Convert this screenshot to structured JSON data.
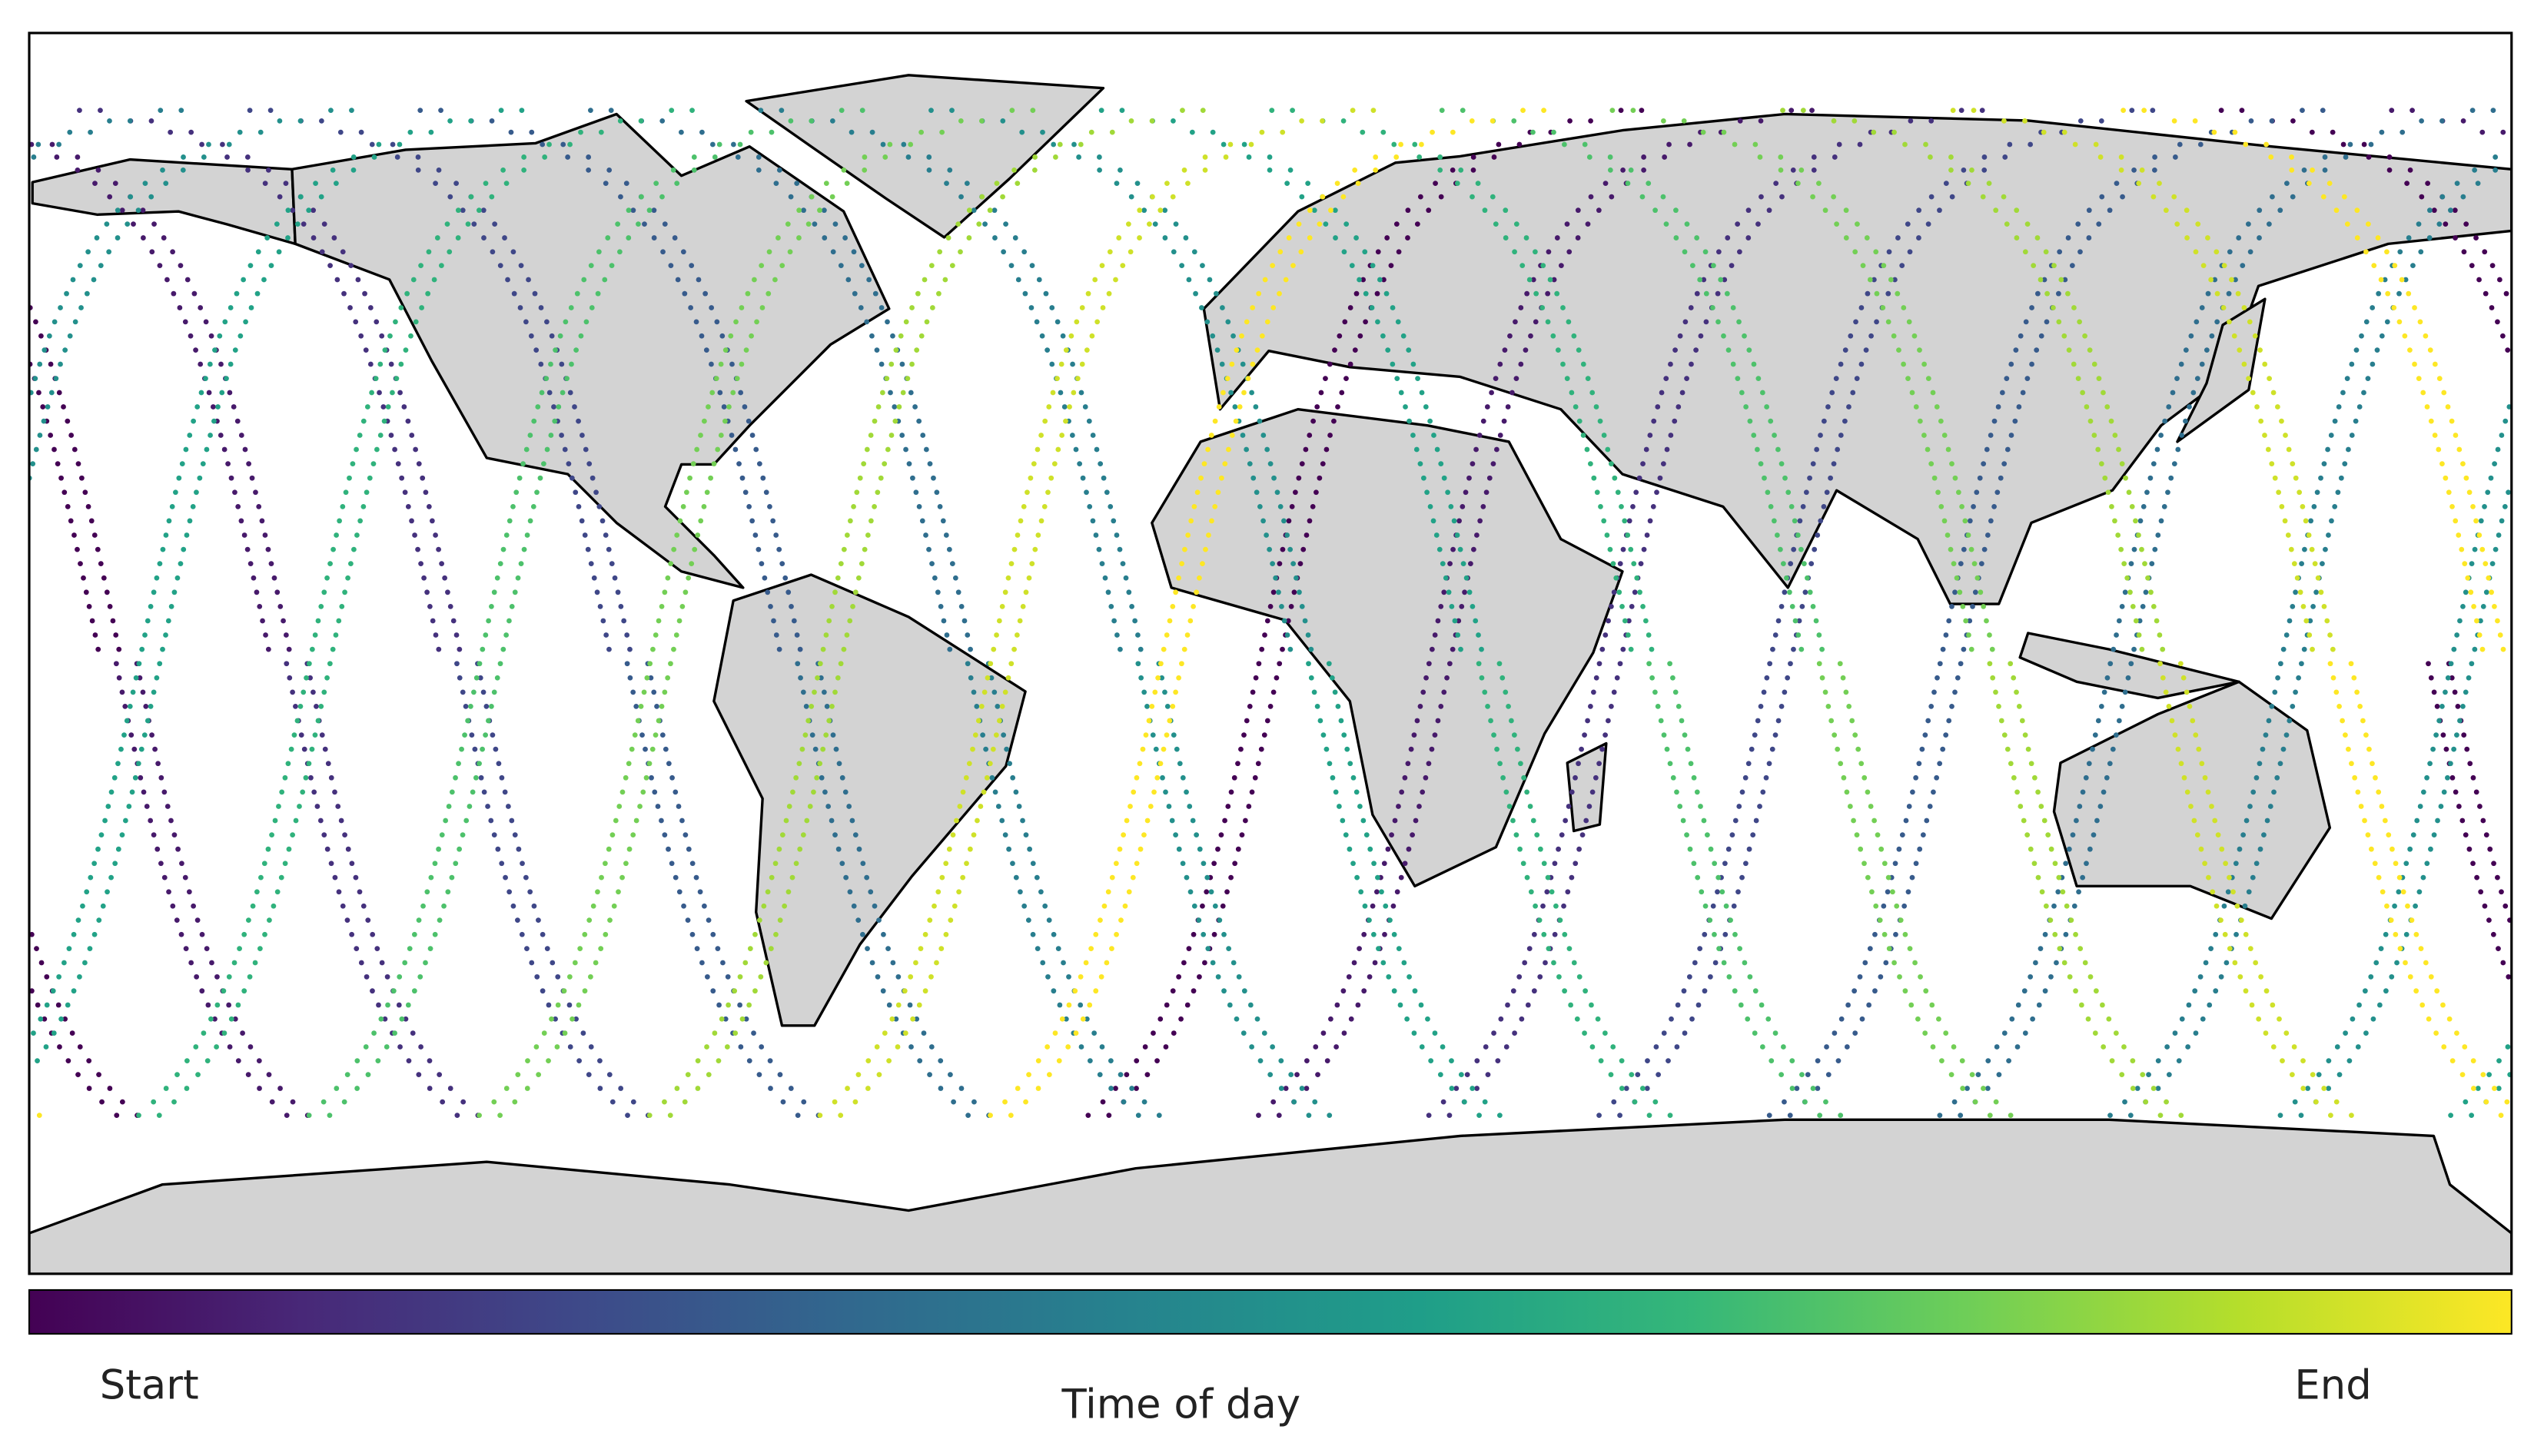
{
  "colorbar": {
    "label": "Time of day",
    "start_label": "Start",
    "end_label": "End"
  }
}
